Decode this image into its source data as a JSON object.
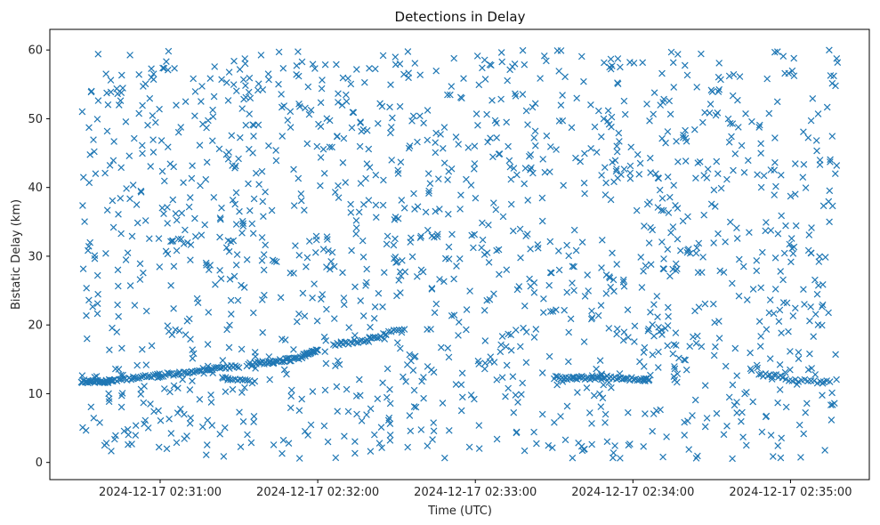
{
  "chart_data": {
    "type": "scatter",
    "title": "Detections in Delay",
    "xlabel": "Time (UTC)",
    "ylabel": "Bistatic Delay (km)",
    "x_tick_labels": [
      "2024-12-17 02:31:00",
      "2024-12-17 02:32:00",
      "2024-12-17 02:33:00",
      "2024-12-17 02:34:00",
      "2024-12-17 02:35:00"
    ],
    "y_ticks": [
      0,
      10,
      20,
      30,
      40,
      50,
      60
    ],
    "xlim_minutes": [
      30.3,
      35.5
    ],
    "ylim": [
      -2.5,
      63
    ],
    "marker": "x",
    "color": "#1f77b4",
    "grid": false,
    "series": [
      {
        "trend_segments": [
          {
            "x_start": 30.5,
            "x_end": 30.7,
            "y_start": 11.8,
            "y_end": 11.8,
            "count": 34
          },
          {
            "x_start": 30.7,
            "x_end": 31.2,
            "y_start": 11.9,
            "y_end": 13.2,
            "count": 40
          },
          {
            "x_start": 31.2,
            "x_end": 31.5,
            "y_start": 13.3,
            "y_end": 14.0,
            "count": 26
          },
          {
            "x_start": 31.4,
            "x_end": 31.6,
            "y_start": 12.2,
            "y_end": 11.7,
            "count": 14
          },
          {
            "x_start": 31.55,
            "x_end": 31.9,
            "y_start": 14.2,
            "y_end": 15.2,
            "count": 36
          },
          {
            "x_start": 31.9,
            "x_end": 32.0,
            "y_start": 15.4,
            "y_end": 16.4,
            "count": 20
          },
          {
            "x_start": 32.1,
            "x_end": 32.4,
            "y_start": 17.1,
            "y_end": 18.2,
            "count": 26
          },
          {
            "x_start": 32.4,
            "x_end": 32.55,
            "y_start": 18.6,
            "y_end": 19.5,
            "count": 10
          },
          {
            "x_start": 33.5,
            "x_end": 33.8,
            "y_start": 12.3,
            "y_end": 12.3,
            "count": 30
          },
          {
            "x_start": 33.8,
            "x_end": 34.1,
            "y_start": 12.5,
            "y_end": 11.9,
            "count": 26
          },
          {
            "x_start": 34.8,
            "x_end": 34.95,
            "y_start": 12.8,
            "y_end": 12.6,
            "count": 12
          },
          {
            "x_start": 34.95,
            "x_end": 35.25,
            "y_start": 12.2,
            "y_end": 11.6,
            "count": 16
          }
        ],
        "scatter_region": {
          "x_min": 30.5,
          "x_max": 35.3,
          "y_min": 0.5,
          "y_max": 60,
          "count": 1500
        }
      }
    ]
  }
}
